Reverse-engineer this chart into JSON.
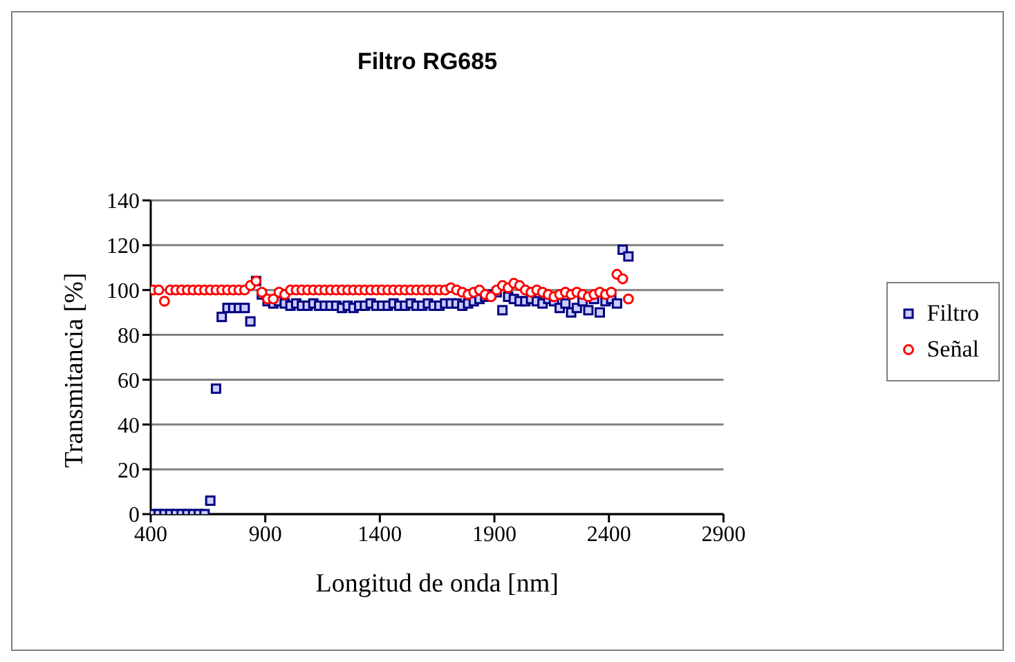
{
  "chart_data": {
    "type": "scatter",
    "title": "Filtro RG685",
    "xlabel": "Longitud de onda [nm]",
    "ylabel": "Transmitancia [%]",
    "x": [
      410,
      435,
      460,
      485,
      510,
      535,
      560,
      585,
      610,
      635,
      660,
      685,
      710,
      735,
      760,
      785,
      810,
      835,
      860,
      885,
      910,
      935,
      960,
      985,
      1010,
      1035,
      1060,
      1085,
      1110,
      1135,
      1160,
      1185,
      1210,
      1235,
      1260,
      1285,
      1310,
      1335,
      1360,
      1385,
      1410,
      1435,
      1460,
      1485,
      1510,
      1535,
      1560,
      1585,
      1610,
      1635,
      1660,
      1685,
      1710,
      1735,
      1760,
      1785,
      1810,
      1835,
      1860,
      1885,
      1910,
      1935,
      1960,
      1985,
      2010,
      2035,
      2060,
      2085,
      2110,
      2135,
      2160,
      2185,
      2210,
      2235,
      2260,
      2285,
      2310,
      2335,
      2360,
      2385,
      2410,
      2435,
      2460,
      2485
    ],
    "series": [
      {
        "name": "Filtro",
        "color": "#000080",
        "marker": "square",
        "values": [
          0,
          0,
          0,
          0,
          0,
          0,
          0,
          0,
          0,
          0,
          6,
          56,
          88,
          92,
          92,
          92,
          92,
          86,
          104,
          98,
          95,
          94,
          95,
          94,
          93,
          94,
          93,
          93,
          94,
          93,
          93,
          93,
          93,
          92,
          93,
          92,
          93,
          93,
          94,
          93,
          93,
          93,
          94,
          93,
          93,
          94,
          93,
          93,
          94,
          93,
          93,
          94,
          94,
          94,
          93,
          94,
          95,
          96,
          97,
          98,
          99,
          91,
          97,
          96,
          95,
          95,
          96,
          95,
          94,
          96,
          95,
          92,
          94,
          90,
          92,
          95,
          91,
          96,
          90,
          95,
          96,
          94,
          118,
          115
        ]
      },
      {
        "name": "Señal",
        "color": "#ff0000",
        "marker": "circle",
        "values": [
          100,
          100,
          95,
          100,
          100,
          100,
          100,
          100,
          100,
          100,
          100,
          100,
          100,
          100,
          100,
          100,
          100,
          102,
          104,
          99,
          96,
          96,
          99,
          98,
          100,
          100,
          100,
          100,
          100,
          100,
          100,
          100,
          100,
          100,
          100,
          100,
          100,
          100,
          100,
          100,
          100,
          100,
          100,
          100,
          100,
          100,
          100,
          100,
          100,
          100,
          100,
          100,
          101,
          100,
          99,
          98,
          99,
          100,
          98,
          97,
          100,
          102,
          101,
          103,
          102,
          100,
          99,
          100,
          99,
          98,
          97,
          98,
          99,
          98,
          99,
          98,
          97,
          98,
          99,
          98,
          99,
          107,
          105,
          96
        ]
      }
    ],
    "xlim": [
      400,
      2900
    ],
    "xticks": [
      400,
      900,
      1400,
      1900,
      2400,
      2900
    ],
    "ylim": [
      0,
      140
    ],
    "yticks": [
      0,
      20,
      40,
      60,
      80,
      100,
      120,
      140
    ],
    "grid": "y",
    "legend": "right"
  }
}
